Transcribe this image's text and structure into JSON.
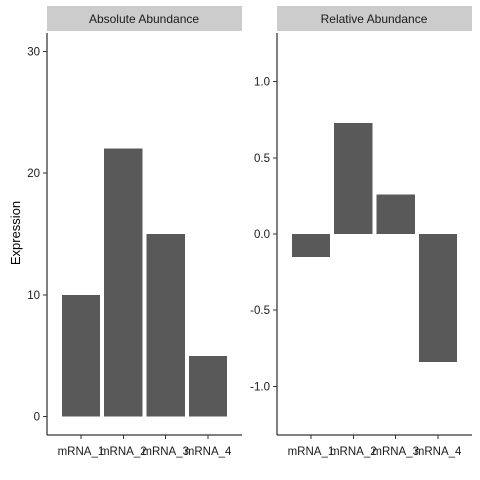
{
  "chart_data": {
    "type": "bar",
    "ylabel": "Expression",
    "colors": {
      "bar": "#595959",
      "strip": "#cccccc",
      "background": "#ffffff"
    },
    "grid": false,
    "panels": [
      {
        "title": "Absolute Abundance",
        "categories": [
          "mRNA_1",
          "mRNA_2",
          "mRNA_3",
          "mRNA_4"
        ],
        "values": [
          10,
          22,
          15,
          5
        ],
        "ylim": [
          -1.5,
          31.5
        ],
        "yticks": [
          0,
          10,
          20,
          30
        ],
        "ytick_labels": [
          "0",
          "10",
          "20",
          "30"
        ]
      },
      {
        "title": "Relative Abundance",
        "categories": [
          "mRNA_1",
          "mRNA_2",
          "mRNA_3",
          "mRNA_4"
        ],
        "values": [
          -0.15,
          0.73,
          0.26,
          -0.84
        ],
        "ylim": [
          -1.32,
          1.32
        ],
        "yticks": [
          1.0,
          0.5,
          0.0,
          -0.5,
          -1.0
        ],
        "ytick_labels": [
          "1.0",
          "0.5",
          "0.0",
          "-0.5",
          "-1.0"
        ]
      }
    ]
  }
}
